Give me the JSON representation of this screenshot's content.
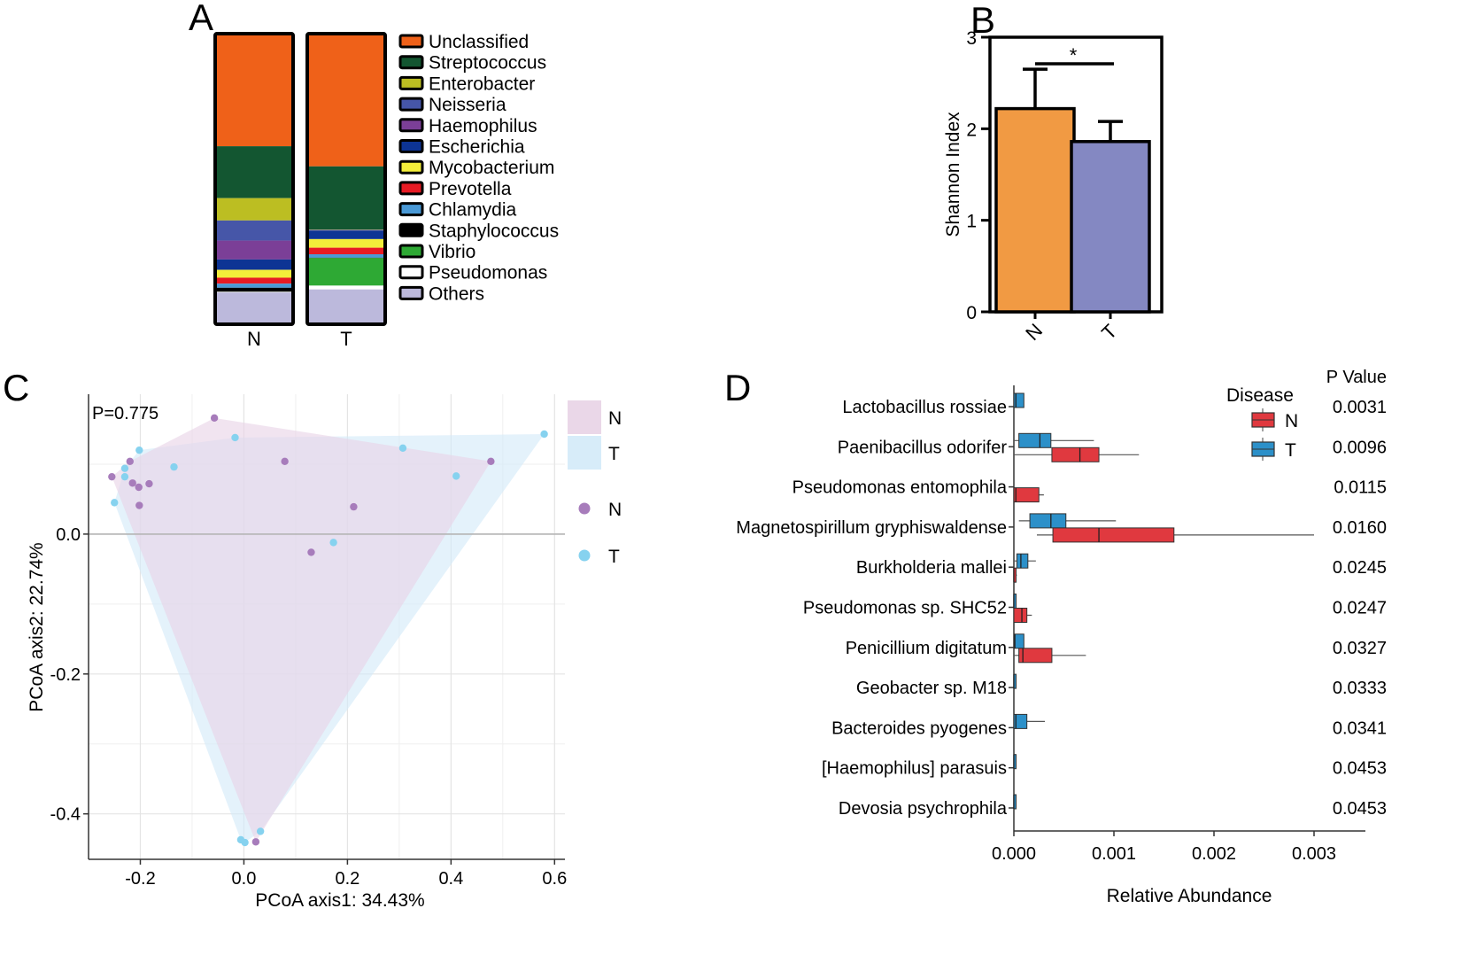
{
  "panel_labels": {
    "a": "A",
    "b": "B",
    "c": "C",
    "d": "D"
  },
  "chart_data": [
    {
      "panel": "A",
      "type": "bar",
      "stacked": true,
      "categories": [
        "N",
        "T"
      ],
      "series": [
        {
          "name": "Unclassified",
          "color": "#ef6119",
          "values": [
            35.8,
            38.5
          ]
        },
        {
          "name": "Streptococcus",
          "color": "#135631",
          "values": [
            16.5,
            18.3
          ]
        },
        {
          "name": "Enterobacter",
          "color": "#bcbe22",
          "values": [
            7.1,
            0.1
          ]
        },
        {
          "name": "Neisseria",
          "color": "#4656a8",
          "values": [
            6.4,
            0.1
          ]
        },
        {
          "name": "Haemophilus",
          "color": "#7b3f97",
          "values": [
            6.0,
            0.1
          ]
        },
        {
          "name": "Escherichia",
          "color": "#0d3494",
          "values": [
            3.3,
            2.5
          ]
        },
        {
          "name": "Mycobacterium",
          "color": "#f3ee3a",
          "values": [
            2.5,
            2.5
          ]
        },
        {
          "name": "Prevotella",
          "color": "#e71b24",
          "values": [
            1.9,
            1.9
          ]
        },
        {
          "name": "Chlamydia",
          "color": "#4a99d6",
          "values": [
            1.3,
            1.0
          ]
        },
        {
          "name": "Staphylococcus",
          "color": "#000000",
          "values": [
            1.3,
            0.1
          ]
        },
        {
          "name": "Vibrio",
          "color": "#2ea934",
          "values": [
            0.1,
            8.1
          ]
        },
        {
          "name": "Pseudomonas",
          "color": "#ffffff",
          "values": [
            0.1,
            1.0
          ]
        },
        {
          "name": "Others",
          "color": "#bcb9dc",
          "values": [
            10.1,
            10.1
          ]
        }
      ]
    },
    {
      "panel": "B",
      "type": "bar",
      "categories": [
        "N",
        "T"
      ],
      "values": [
        2.22,
        1.86
      ],
      "errors": [
        0.43,
        0.22
      ],
      "colors": [
        "#f19a43",
        "#8488c2"
      ],
      "ylabel": "Shannon Index",
      "ylim": [
        0,
        3
      ],
      "yticks": [
        "0",
        "1",
        "2",
        "3"
      ],
      "significance": "*"
    },
    {
      "panel": "C",
      "type": "scatter",
      "annotation": "P=0.775",
      "xlabel": "PCoA axis1: 34.43%",
      "ylabel": "PCoA axis2: 22.74%",
      "xlim": [
        -0.3,
        0.62
      ],
      "ylim": [
        -0.465,
        0.2
      ],
      "xticks": [
        "-0.2",
        "0.0",
        "0.2",
        "0.4",
        "0.6"
      ],
      "yticks": [
        "-0.4",
        "-0.2",
        "0.0"
      ],
      "legend_fill": [
        "N",
        "T"
      ],
      "legend_points": [
        "N",
        "T"
      ],
      "series": [
        {
          "name": "N",
          "color": "#a77cbb",
          "hull_color": "#e8d3e6",
          "points": [
            [
              -0.057,
              0.166
            ],
            [
              -0.22,
              0.104
            ],
            [
              -0.183,
              0.072
            ],
            [
              -0.215,
              0.073
            ],
            [
              -0.203,
              0.067
            ],
            [
              -0.202,
              0.041
            ],
            [
              -0.255,
              0.082
            ],
            [
              0.079,
              0.104
            ],
            [
              0.477,
              0.104
            ],
            [
              0.212,
              0.039
            ],
            [
              0.13,
              -0.026
            ],
            [
              0.023,
              -0.44
            ]
          ]
        },
        {
          "name": "T",
          "color": "#86d2ef",
          "hull_color": "#d3eaf8",
          "points": [
            [
              -0.202,
              0.12
            ],
            [
              -0.135,
              0.096
            ],
            [
              -0.23,
              0.094
            ],
            [
              -0.23,
              0.082
            ],
            [
              -0.25,
              0.045
            ],
            [
              -0.017,
              0.138
            ],
            [
              0.307,
              0.123
            ],
            [
              0.58,
              0.143
            ],
            [
              0.41,
              0.083
            ],
            [
              0.173,
              -0.012
            ],
            [
              -0.006,
              -0.437
            ],
            [
              0.002,
              -0.441
            ],
            [
              0.032,
              -0.425
            ]
          ]
        }
      ]
    },
    {
      "panel": "D",
      "type": "boxplot",
      "xlabel": "Relative Abundance",
      "xlim": [
        0,
        0.0031
      ],
      "xticks": [
        "0.000",
        "0.001",
        "0.002",
        "0.003"
      ],
      "legend_title": "Disease",
      "legend": [
        {
          "name": "N",
          "color": "#e0393f"
        },
        {
          "name": "T",
          "color": "#2c90c9"
        }
      ],
      "pvalue_header": "P Value",
      "rows": [
        {
          "name": "Lactobacillus rossiae",
          "p": "0.0031",
          "T": {
            "min": 0,
            "q1": 0,
            "median": 2e-05,
            "q3": 0.0001,
            "max": 0.0001
          },
          "N": null
        },
        {
          "name": "Paenibacillus odorifer",
          "p": "0.0096",
          "T": {
            "min": 0,
            "q1": 5e-05,
            "median": 0.00026,
            "q3": 0.00037,
            "max": 0.0008
          },
          "N": {
            "min": 0,
            "q1": 0.00038,
            "median": 0.00066,
            "q3": 0.00085,
            "max": 0.00125
          }
        },
        {
          "name": "Pseudomonas entomophila",
          "p": "0.0115",
          "T": null,
          "N": {
            "min": 0,
            "q1": 0,
            "median": 2e-05,
            "q3": 0.00025,
            "max": 0.0003
          }
        },
        {
          "name": "Magnetospirillum gryphiswaldense",
          "p": "0.0160",
          "T": {
            "min": 5e-05,
            "q1": 0.00016,
            "median": 0.00037,
            "q3": 0.00052,
            "max": 0.00102
          },
          "N": {
            "min": 0.00023,
            "q1": 0.00039,
            "median": 0.00085,
            "q3": 0.0016,
            "max": 0.003
          }
        },
        {
          "name": "Burkholderia mallei",
          "p": "0.0245",
          "T": {
            "min": 0,
            "q1": 3e-05,
            "median": 7e-05,
            "q3": 0.00014,
            "max": 0.00022
          },
          "N": {
            "min": 0,
            "q1": 0,
            "median": 0,
            "q3": 2e-05,
            "max": 3e-05
          }
        },
        {
          "name": "Pseudomonas sp. SHC52",
          "p": "0.0247",
          "T": {
            "min": 0,
            "q1": 0,
            "median": 0,
            "q3": 1e-05,
            "max": 2e-05
          },
          "N": {
            "min": 0,
            "q1": 0,
            "median": 8e-05,
            "q3": 0.00013,
            "max": 0.00018
          }
        },
        {
          "name": "Penicillium digitatum",
          "p": "0.0327",
          "T": {
            "min": 0,
            "q1": 0,
            "median": 1e-05,
            "q3": 0.0001,
            "max": 0.0001
          },
          "N": {
            "min": 0,
            "q1": 5e-05,
            "median": 9e-05,
            "q3": 0.00038,
            "max": 0.00072
          }
        },
        {
          "name": "Geobacter sp. M18",
          "p": "0.0333",
          "T": {
            "min": 0,
            "q1": 0,
            "median": 0,
            "q3": 1e-05,
            "max": 1e-05
          },
          "N": null
        },
        {
          "name": "Bacteroides pyogenes",
          "p": "0.0341",
          "T": {
            "min": 0,
            "q1": 0,
            "median": 2e-05,
            "q3": 0.00013,
            "max": 0.00031
          },
          "N": null
        },
        {
          "name": "[Haemophilus] parasuis",
          "p": "0.0453",
          "T": {
            "min": 0,
            "q1": 0,
            "median": 0,
            "q3": 1e-05,
            "max": 1e-05
          },
          "N": null
        },
        {
          "name": "Devosia psychrophila",
          "p": "0.0453",
          "T": {
            "min": 0,
            "q1": 0,
            "median": 0,
            "q3": 1e-05,
            "max": 1e-05
          },
          "N": null
        }
      ]
    }
  ]
}
